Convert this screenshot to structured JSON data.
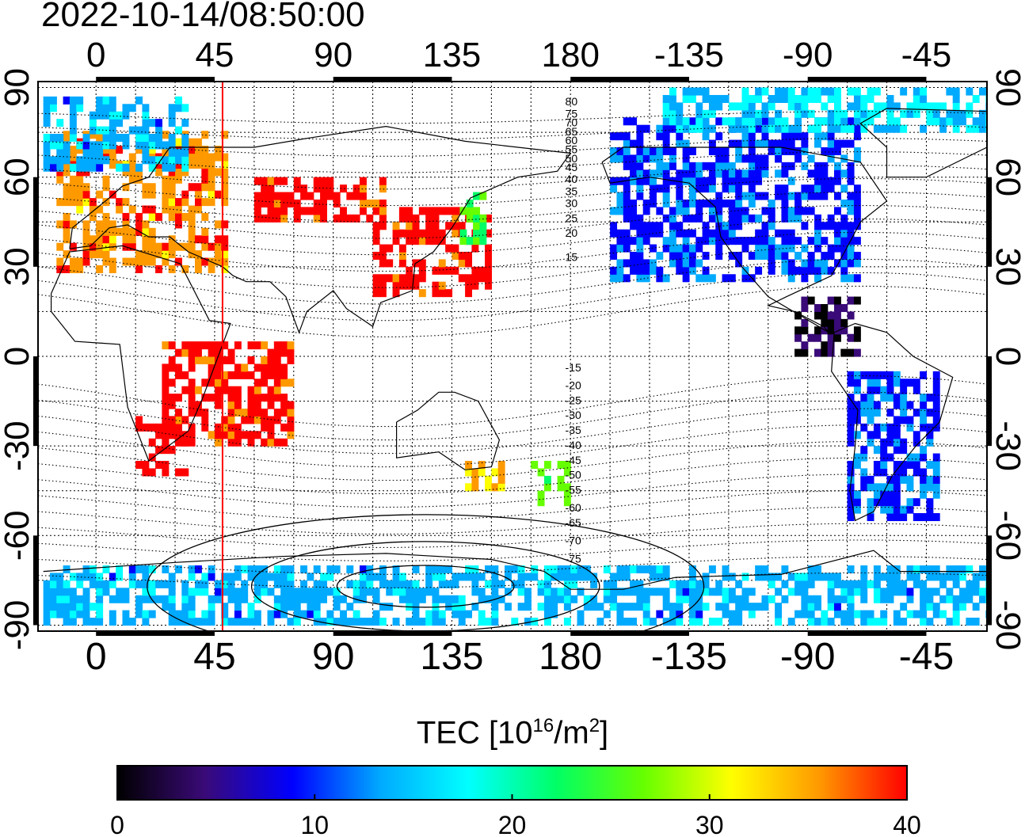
{
  "title": "2022-10-14/08:50:00",
  "colorbar": {
    "label_main": "TEC  [10",
    "label_exp": "16",
    "label_unit": "/m",
    "label_exp2": "2",
    "label_end": "]",
    "ticks": [
      "0",
      "10",
      "20",
      "30",
      "40"
    ],
    "min": 0,
    "max": 40,
    "colors": [
      "#000000",
      "#3a0a78",
      "#0000ff",
      "#00aaff",
      "#00ffff",
      "#00ff66",
      "#66ff00",
      "#ffff00",
      "#ff9900",
      "#ff0000"
    ]
  },
  "axes": {
    "lon_ticks_top": [
      "0",
      "45",
      "90",
      "135",
      "180",
      "-135",
      "-90",
      "-45"
    ],
    "lon_ticks_bottom": [
      "0",
      "45",
      "90",
      "135",
      "180",
      "-135",
      "-90",
      "-45"
    ],
    "lat_ticks_left": [
      "90",
      "60",
      "30",
      "0",
      "-30",
      "-60",
      "-90"
    ],
    "lat_ticks_right": [
      "90",
      "60",
      "30",
      "0",
      "-30",
      "-60",
      "-90"
    ],
    "lon_range": [
      -22,
      338
    ],
    "lat_range": [
      -92,
      92
    ]
  },
  "contour_labels": [
    "80",
    "75",
    "70",
    "65",
    "60",
    "55",
    "50",
    "45",
    "40",
    "35",
    "30",
    "25",
    "20",
    "15",
    "-15",
    "-20",
    "-25",
    "-30",
    "-35",
    "-40",
    "-45",
    "-50",
    "-55",
    "-60",
    "-65",
    "-70",
    "-75"
  ],
  "marker_meridian_lon": 48,
  "tec_regions": [
    {
      "name": "europe",
      "lon": [
        -15,
        50
      ],
      "lat": [
        28,
        75
      ],
      "value": 36
    },
    {
      "name": "north-europe",
      "lon": [
        -20,
        35
      ],
      "lat": [
        62,
        86
      ],
      "value": 14
    },
    {
      "name": "north-asia",
      "lon": [
        60,
        108
      ],
      "lat": [
        45,
        58
      ],
      "value": 40
    },
    {
      "name": "east-asia",
      "lon": [
        105,
        150
      ],
      "lat": [
        20,
        50
      ],
      "value": 40
    },
    {
      "name": "japan",
      "lon": [
        138,
        148
      ],
      "lat": [
        35,
        55
      ],
      "value": 24
    },
    {
      "name": "africa-south",
      "lon": [
        15,
        35
      ],
      "lat": [
        -40,
        -20
      ],
      "value": 40
    },
    {
      "name": "africa-east",
      "lon": [
        25,
        75
      ],
      "lat": [
        -30,
        5
      ],
      "value": 40
    },
    {
      "name": "australia",
      "lon": [
        140,
        155
      ],
      "lat": [
        -45,
        -35
      ],
      "value": 34
    },
    {
      "name": "new-zealand",
      "lon": [
        165,
        182
      ],
      "lat": [
        -50,
        -35
      ],
      "value": 25
    },
    {
      "name": "north-america",
      "lon": [
        195,
        290
      ],
      "lat": [
        25,
        80
      ],
      "value": 10
    },
    {
      "name": "central-america",
      "lon": [
        265,
        290
      ],
      "lat": [
        0,
        18
      ],
      "value": 2
    },
    {
      "name": "south-america",
      "lon": [
        285,
        320
      ],
      "lat": [
        -55,
        -5
      ],
      "value": 10
    },
    {
      "name": "antarctica",
      "lon": [
        -20,
        338
      ],
      "lat": [
        -90,
        -70
      ],
      "value": 14
    },
    {
      "name": "arctic",
      "lon": [
        215,
        338
      ],
      "lat": [
        75,
        90
      ],
      "value": 16
    }
  ]
}
